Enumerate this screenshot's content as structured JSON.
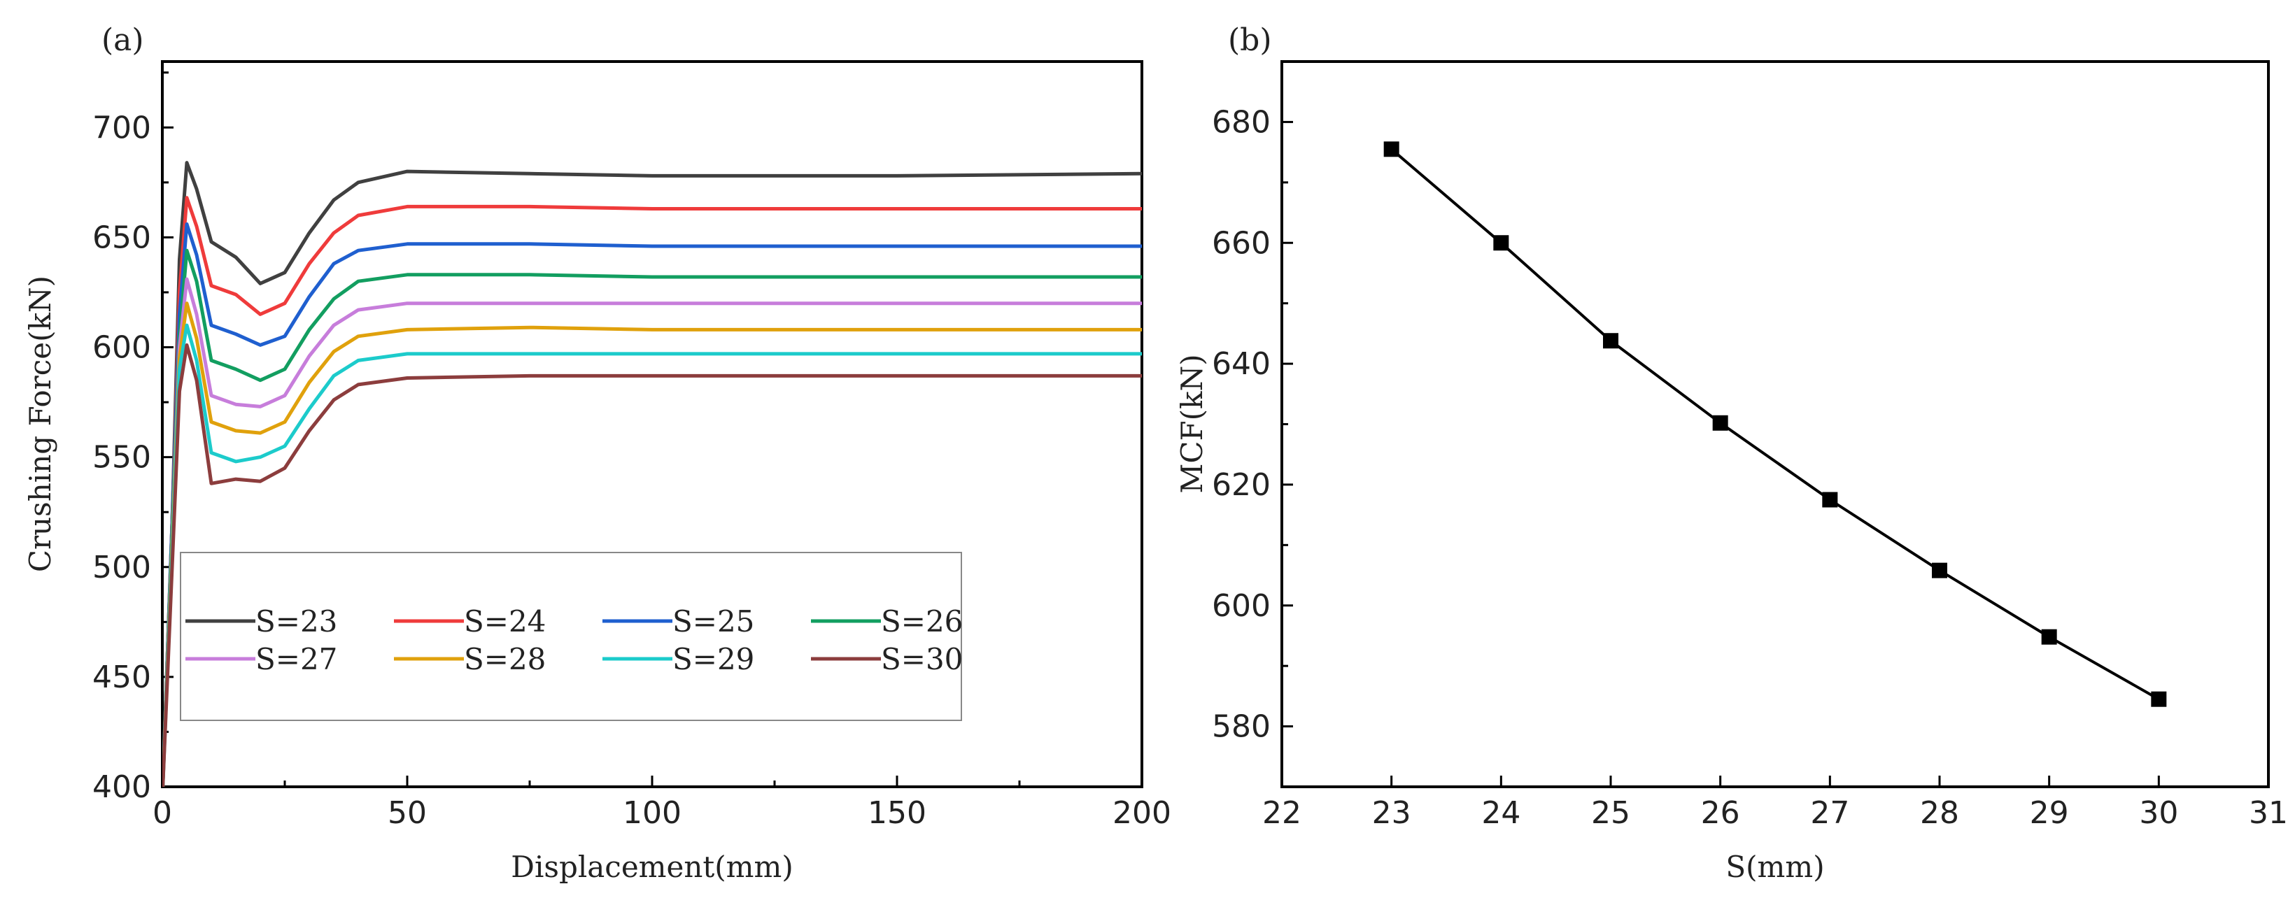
{
  "panels": {
    "a": {
      "label": "(a)"
    },
    "b": {
      "label": "(b)"
    }
  },
  "chart_data": [
    {
      "type": "line",
      "panel": "(a)",
      "xlabel": "Displacement(mm)",
      "ylabel": "Crushing Force(kN)",
      "xlim": [
        0,
        200
      ],
      "ylim": [
        400,
        730
      ],
      "xticks": [
        0,
        50,
        100,
        150,
        200
      ],
      "yticks": [
        400,
        450,
        500,
        550,
        600,
        650,
        700
      ],
      "legend_position": "bottom-left",
      "series": [
        {
          "name": "S=23",
          "color": "#404040",
          "points": [
            [
              0,
              395
            ],
            [
              2,
              520
            ],
            [
              3.5,
              640
            ],
            [
              5,
              684
            ],
            [
              7,
              672
            ],
            [
              10,
              648
            ],
            [
              15,
              641
            ],
            [
              20,
              629
            ],
            [
              25,
              634
            ],
            [
              30,
              652
            ],
            [
              35,
              667
            ],
            [
              40,
              675
            ],
            [
              50,
              680
            ],
            [
              75,
              679
            ],
            [
              100,
              678
            ],
            [
              150,
              678
            ],
            [
              200,
              679
            ]
          ]
        },
        {
          "name": "S=24",
          "color": "#ef3b3b",
          "points": [
            [
              0,
              395
            ],
            [
              2,
              520
            ],
            [
              3.5,
              625
            ],
            [
              5,
              668
            ],
            [
              7,
              655
            ],
            [
              10,
              628
            ],
            [
              15,
              624
            ],
            [
              20,
              615
            ],
            [
              25,
              620
            ],
            [
              30,
              638
            ],
            [
              35,
              652
            ],
            [
              40,
              660
            ],
            [
              50,
              664
            ],
            [
              75,
              664
            ],
            [
              100,
              663
            ],
            [
              150,
              663
            ],
            [
              200,
              663
            ]
          ]
        },
        {
          "name": "S=25",
          "color": "#1f5fcf",
          "points": [
            [
              0,
              395
            ],
            [
              2,
              520
            ],
            [
              3.5,
              615
            ],
            [
              5,
              656
            ],
            [
              7,
              642
            ],
            [
              10,
              610
            ],
            [
              15,
              606
            ],
            [
              20,
              601
            ],
            [
              25,
              605
            ],
            [
              30,
              623
            ],
            [
              35,
              638
            ],
            [
              40,
              644
            ],
            [
              50,
              647
            ],
            [
              75,
              647
            ],
            [
              100,
              646
            ],
            [
              150,
              646
            ],
            [
              200,
              646
            ]
          ]
        },
        {
          "name": "S=26",
          "color": "#129e60",
          "points": [
            [
              0,
              395
            ],
            [
              2,
              515
            ],
            [
              3.5,
              605
            ],
            [
              5,
              644
            ],
            [
              7,
              630
            ],
            [
              10,
              594
            ],
            [
              15,
              590
            ],
            [
              20,
              585
            ],
            [
              25,
              590
            ],
            [
              30,
              608
            ],
            [
              35,
              622
            ],
            [
              40,
              630
            ],
            [
              50,
              633
            ],
            [
              75,
              633
            ],
            [
              100,
              632
            ],
            [
              150,
              632
            ],
            [
              200,
              632
            ]
          ]
        },
        {
          "name": "S=27",
          "color": "#c77ddb",
          "points": [
            [
              0,
              395
            ],
            [
              2,
              510
            ],
            [
              3.5,
              600
            ],
            [
              5,
              631
            ],
            [
              7,
              615
            ],
            [
              10,
              578
            ],
            [
              15,
              574
            ],
            [
              20,
              573
            ],
            [
              25,
              578
            ],
            [
              30,
              596
            ],
            [
              35,
              610
            ],
            [
              40,
              617
            ],
            [
              50,
              620
            ],
            [
              75,
              620
            ],
            [
              100,
              620
            ],
            [
              150,
              620
            ],
            [
              200,
              620
            ]
          ]
        },
        {
          "name": "S=28",
          "color": "#e0a10c",
          "points": [
            [
              0,
              395
            ],
            [
              2,
              510
            ],
            [
              3.5,
              595
            ],
            [
              5,
              620
            ],
            [
              7,
              604
            ],
            [
              10,
              566
            ],
            [
              15,
              562
            ],
            [
              20,
              561
            ],
            [
              25,
              566
            ],
            [
              30,
              584
            ],
            [
              35,
              598
            ],
            [
              40,
              605
            ],
            [
              50,
              608
            ],
            [
              75,
              609
            ],
            [
              100,
              608
            ],
            [
              150,
              608
            ],
            [
              200,
              608
            ]
          ]
        },
        {
          "name": "S=29",
          "color": "#1ccbcb",
          "points": [
            [
              0,
              395
            ],
            [
              2,
              505
            ],
            [
              3.5,
              590
            ],
            [
              5,
              610
            ],
            [
              7,
              594
            ],
            [
              10,
              552
            ],
            [
              15,
              548
            ],
            [
              20,
              550
            ],
            [
              25,
              555
            ],
            [
              30,
              572
            ],
            [
              35,
              587
            ],
            [
              40,
              594
            ],
            [
              50,
              597
            ],
            [
              75,
              597
            ],
            [
              100,
              597
            ],
            [
              150,
              597
            ],
            [
              200,
              597
            ]
          ]
        },
        {
          "name": "S=30",
          "color": "#8c3d3d",
          "points": [
            [
              0,
              395
            ],
            [
              2,
              500
            ],
            [
              3.5,
              580
            ],
            [
              5,
              601
            ],
            [
              7,
              585
            ],
            [
              10,
              538
            ],
            [
              15,
              540
            ],
            [
              20,
              539
            ],
            [
              25,
              545
            ],
            [
              30,
              562
            ],
            [
              35,
              576
            ],
            [
              40,
              583
            ],
            [
              50,
              586
            ],
            [
              75,
              587
            ],
            [
              100,
              587
            ],
            [
              150,
              587
            ],
            [
              200,
              587
            ]
          ]
        }
      ]
    },
    {
      "type": "line",
      "panel": "(b)",
      "xlabel": "S(mm)",
      "ylabel": "MCF(kN)",
      "xlim": [
        22,
        31
      ],
      "ylim": [
        570,
        690
      ],
      "xticks": [
        22,
        23,
        24,
        25,
        26,
        27,
        28,
        29,
        30,
        31
      ],
      "yticks": [
        580,
        600,
        620,
        640,
        660,
        680
      ],
      "marker": "square",
      "series": [
        {
          "name": "MCF",
          "color": "#000000",
          "x": [
            23,
            24,
            25,
            26,
            27,
            28,
            29,
            30
          ],
          "y": [
            675.5,
            660,
            643.8,
            630.2,
            617.5,
            605.8,
            594.8,
            584.5
          ]
        }
      ]
    }
  ]
}
